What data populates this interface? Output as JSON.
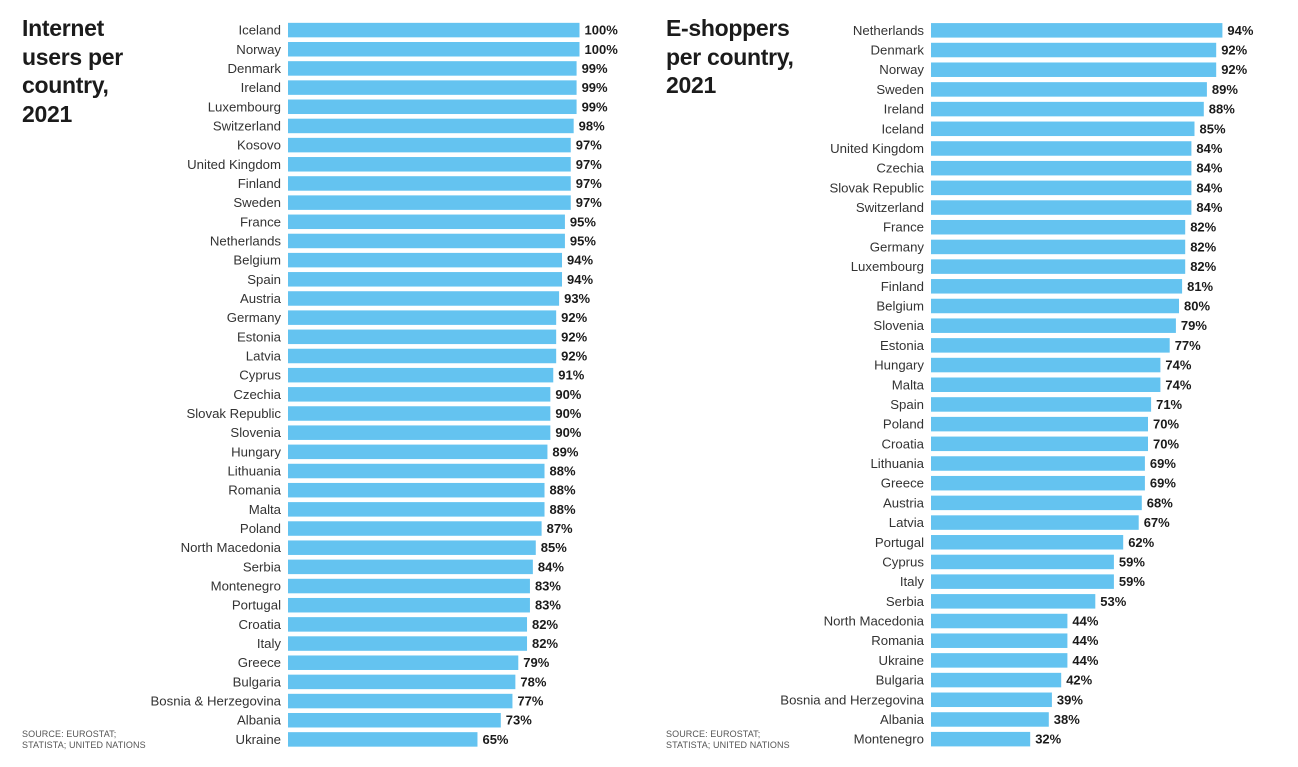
{
  "charts": [
    {
      "title_lines": [
        "Internet",
        "users per",
        "country,",
        "2021"
      ],
      "source_lines": [
        "SOURCE: EUROSTAT;",
        "STATISTA; UNITED NATIONS"
      ],
      "bar_color": "#64c3f0"
    },
    {
      "title_lines": [
        "E-shoppers",
        "per country,",
        "2021"
      ],
      "source_lines": [
        "SOURCE: EUROSTAT;",
        "STATISTA; UNITED NATIONS"
      ],
      "bar_color": "#64c3f0"
    }
  ],
  "chart_data": [
    {
      "type": "bar",
      "orientation": "horizontal",
      "title": "Internet users per country, 2021",
      "value_format": "percent",
      "xlim": [
        0,
        100
      ],
      "grid": false,
      "categories": [
        "Iceland",
        "Norway",
        "Denmark",
        "Ireland",
        "Luxembourg",
        "Switzerland",
        "Kosovo",
        "United Kingdom",
        "Finland",
        "Sweden",
        "France",
        "Netherlands",
        "Belgium",
        "Spain",
        "Austria",
        "Germany",
        "Estonia",
        "Latvia",
        "Cyprus",
        "Czechia",
        "Slovak Republic",
        "Slovenia",
        "Hungary",
        "Lithuania",
        "Romania",
        "Malta",
        "Poland",
        "North Macedonia",
        "Serbia",
        "Montenegro",
        "Portugal",
        "Croatia",
        "Italy",
        "Greece",
        "Bulgaria",
        "Bosnia & Herzegovina",
        "Albania",
        "Ukraine"
      ],
      "values": [
        100,
        100,
        99,
        99,
        99,
        98,
        97,
        97,
        97,
        97,
        95,
        95,
        94,
        94,
        93,
        92,
        92,
        92,
        91,
        90,
        90,
        90,
        89,
        88,
        88,
        88,
        87,
        85,
        84,
        83,
        83,
        82,
        82,
        79,
        78,
        77,
        73,
        65
      ],
      "data_labels": [
        "100%",
        "100%",
        "99%",
        "99%",
        "99%",
        "98%",
        "97%",
        "97%",
        "97%",
        "97%",
        "95%",
        "95%",
        "94%",
        "94%",
        "93%",
        "92%",
        "92%",
        "92%",
        "91%",
        "90%",
        "90%",
        "90%",
        "89%",
        "88%",
        "88%",
        "88%",
        "87%",
        "85%",
        "84%",
        "83%",
        "83%",
        "82%",
        "82%",
        "79%",
        "78%",
        "77%",
        "73%",
        "65%"
      ]
    },
    {
      "type": "bar",
      "orientation": "horizontal",
      "title": "E-shoppers per country, 2021",
      "value_format": "percent",
      "xlim": [
        0,
        100
      ],
      "grid": false,
      "categories": [
        "Netherlands",
        "Denmark",
        "Norway",
        "Sweden",
        "Ireland",
        "Iceland",
        "United Kingdom",
        "Czechia",
        "Slovak Republic",
        "Switzerland",
        "France",
        "Germany",
        "Luxembourg",
        "Finland",
        "Belgium",
        "Slovenia",
        "Estonia",
        "Hungary",
        "Malta",
        "Spain",
        "Poland",
        "Croatia",
        "Lithuania",
        "Greece",
        "Austria",
        "Latvia",
        "Portugal",
        "Cyprus",
        "Italy",
        "Serbia",
        "North Macedonia",
        "Romania",
        "Ukraine",
        "Bulgaria",
        "Bosnia and Herzegovina",
        "Albania",
        "Montenegro"
      ],
      "values": [
        94,
        92,
        92,
        89,
        88,
        85,
        84,
        84,
        84,
        84,
        82,
        82,
        82,
        81,
        80,
        79,
        77,
        74,
        74,
        71,
        70,
        70,
        69,
        69,
        68,
        67,
        62,
        59,
        59,
        53,
        44,
        44,
        44,
        42,
        39,
        38,
        32
      ],
      "data_labels": [
        "94%",
        "92%",
        "92%",
        "89%",
        "88%",
        "85%",
        "84%",
        "84%",
        "84%",
        "84%",
        "82%",
        "82%",
        "82%",
        "81%",
        "80%",
        "79%",
        "77%",
        "74%",
        "74%",
        "71%",
        "70%",
        "70%",
        "69%",
        "69%",
        "68%",
        "67%",
        "62%",
        "59%",
        "59%",
        "53%",
        "44%",
        "44%",
        "44%",
        "42%",
        "39%",
        "38%",
        "32%"
      ]
    }
  ]
}
